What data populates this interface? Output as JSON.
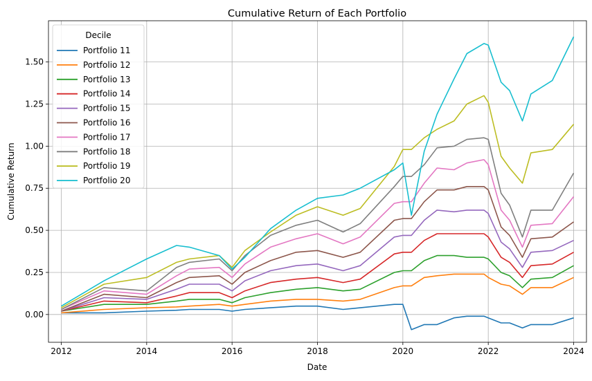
{
  "chart_data": {
    "type": "line",
    "title": "Cumulative Return of Each Portfolio",
    "xlabel": "Date",
    "ylabel": "Cumulative Return",
    "xlim": [
      2011.7,
      2024.3
    ],
    "ylim": [
      -0.165,
      1.745
    ],
    "x_ticks": [
      2012,
      2014,
      2016,
      2018,
      2020,
      2022,
      2024
    ],
    "x_tick_labels": [
      "2012",
      "2014",
      "2016",
      "2018",
      "2020",
      "2022",
      "2024"
    ],
    "y_ticks": [
      0.0,
      0.25,
      0.5,
      0.75,
      1.0,
      1.25,
      1.5
    ],
    "y_tick_labels": [
      "0.00",
      "0.25",
      "0.50",
      "0.75",
      "1.00",
      "1.25",
      "1.50"
    ],
    "grid": true,
    "legend": {
      "title": "Decile",
      "position": "top-left"
    },
    "key_x": [
      2012.0,
      2013.0,
      2014.0,
      2014.7,
      2015.0,
      2015.7,
      2016.0,
      2016.3,
      2016.9,
      2017.5,
      2018.0,
      2018.6,
      2019.0,
      2019.8,
      2020.0,
      2020.2,
      2020.5,
      2020.8,
      2021.2,
      2021.5,
      2021.9,
      2022.0,
      2022.3,
      2022.5,
      2022.8,
      2023.0,
      2023.5,
      2024.0
    ],
    "series": [
      {
        "name": "Portfolio 11",
        "color": "#1f77b4",
        "values": [
          0.01,
          0.01,
          0.02,
          0.025,
          0.03,
          0.03,
          0.02,
          0.03,
          0.04,
          0.05,
          0.05,
          0.03,
          0.04,
          0.06,
          0.06,
          -0.09,
          -0.06,
          -0.06,
          -0.02,
          -0.01,
          -0.01,
          -0.02,
          -0.05,
          -0.05,
          -0.08,
          -0.06,
          -0.06,
          -0.02
        ]
      },
      {
        "name": "Portfolio 12",
        "color": "#ff7f0e",
        "values": [
          0.01,
          0.03,
          0.04,
          0.045,
          0.05,
          0.06,
          0.05,
          0.06,
          0.08,
          0.09,
          0.09,
          0.08,
          0.09,
          0.16,
          0.17,
          0.17,
          0.22,
          0.23,
          0.24,
          0.24,
          0.24,
          0.22,
          0.18,
          0.17,
          0.12,
          0.16,
          0.16,
          0.22
        ]
      },
      {
        "name": "Portfolio 13",
        "color": "#2ca02c",
        "values": [
          0.02,
          0.06,
          0.06,
          0.08,
          0.09,
          0.09,
          0.07,
          0.1,
          0.13,
          0.15,
          0.16,
          0.14,
          0.15,
          0.25,
          0.26,
          0.26,
          0.32,
          0.35,
          0.35,
          0.34,
          0.34,
          0.33,
          0.25,
          0.23,
          0.16,
          0.21,
          0.22,
          0.29
        ]
      },
      {
        "name": "Portfolio 14",
        "color": "#d62728",
        "values": [
          0.02,
          0.08,
          0.07,
          0.11,
          0.13,
          0.13,
          0.1,
          0.14,
          0.19,
          0.21,
          0.22,
          0.19,
          0.21,
          0.36,
          0.37,
          0.37,
          0.44,
          0.48,
          0.48,
          0.48,
          0.48,
          0.46,
          0.34,
          0.31,
          0.22,
          0.29,
          0.3,
          0.37
        ]
      },
      {
        "name": "Portfolio 15",
        "color": "#9467bd",
        "values": [
          0.02,
          0.1,
          0.09,
          0.15,
          0.18,
          0.18,
          0.14,
          0.2,
          0.26,
          0.29,
          0.3,
          0.26,
          0.29,
          0.46,
          0.47,
          0.47,
          0.56,
          0.62,
          0.61,
          0.62,
          0.62,
          0.6,
          0.43,
          0.39,
          0.28,
          0.37,
          0.38,
          0.44
        ]
      },
      {
        "name": "Portfolio 16",
        "color": "#8c564b",
        "values": [
          0.02,
          0.12,
          0.1,
          0.19,
          0.22,
          0.23,
          0.18,
          0.25,
          0.32,
          0.37,
          0.38,
          0.34,
          0.37,
          0.56,
          0.57,
          0.57,
          0.67,
          0.74,
          0.74,
          0.76,
          0.76,
          0.74,
          0.52,
          0.47,
          0.34,
          0.45,
          0.46,
          0.55
        ]
      },
      {
        "name": "Portfolio 17",
        "color": "#e377c2",
        "values": [
          0.03,
          0.14,
          0.12,
          0.23,
          0.27,
          0.28,
          0.22,
          0.3,
          0.4,
          0.45,
          0.48,
          0.42,
          0.46,
          0.66,
          0.67,
          0.67,
          0.78,
          0.87,
          0.86,
          0.9,
          0.92,
          0.89,
          0.62,
          0.56,
          0.4,
          0.53,
          0.54,
          0.7
        ]
      },
      {
        "name": "Portfolio 18",
        "color": "#7f7f7f",
        "values": [
          0.03,
          0.16,
          0.14,
          0.28,
          0.31,
          0.33,
          0.26,
          0.35,
          0.47,
          0.53,
          0.56,
          0.49,
          0.54,
          0.76,
          0.82,
          0.82,
          0.89,
          0.99,
          1.0,
          1.04,
          1.05,
          1.04,
          0.72,
          0.65,
          0.46,
          0.62,
          0.62,
          0.84
        ]
      },
      {
        "name": "Portfolio 19",
        "color": "#bcbd22",
        "values": [
          0.04,
          0.18,
          0.22,
          0.31,
          0.33,
          0.35,
          0.28,
          0.38,
          0.49,
          0.59,
          0.64,
          0.59,
          0.63,
          0.88,
          0.98,
          0.98,
          1.05,
          1.1,
          1.15,
          1.25,
          1.3,
          1.26,
          0.94,
          0.87,
          0.78,
          0.96,
          0.98,
          1.13
        ]
      },
      {
        "name": "Portfolio 20",
        "color": "#17becf",
        "values": [
          0.05,
          0.2,
          0.33,
          0.41,
          0.4,
          0.35,
          0.27,
          0.34,
          0.51,
          0.62,
          0.69,
          0.71,
          0.75,
          0.86,
          0.9,
          0.59,
          0.97,
          1.19,
          1.4,
          1.55,
          1.61,
          1.6,
          1.38,
          1.33,
          1.15,
          1.31,
          1.39,
          1.65
        ]
      }
    ]
  }
}
